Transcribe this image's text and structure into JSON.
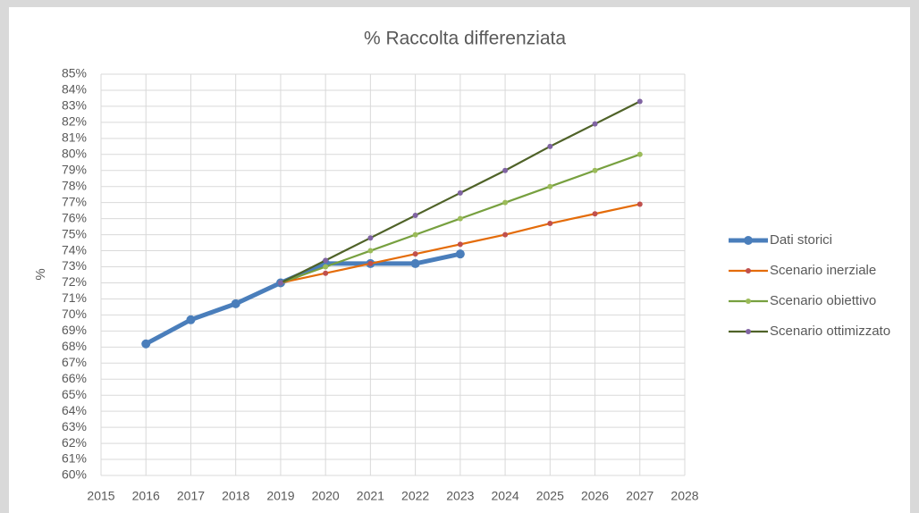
{
  "chart_data": {
    "type": "line",
    "title": "% Raccolta differenziata",
    "y_label": "%",
    "x": [
      2016,
      2017,
      2018,
      2019,
      2020,
      2021,
      2022,
      2023,
      2024,
      2025,
      2026,
      2027
    ],
    "series": [
      {
        "name": "Dati storici",
        "color": "#4a7ebb",
        "marker_color": "#4a7ebb",
        "values": [
          68.2,
          69.7,
          70.7,
          72.0,
          73.2,
          73.2,
          73.2,
          73.8,
          null,
          null,
          null,
          null
        ]
      },
      {
        "name": "Scenario inerziale",
        "color": "#e46c0a",
        "marker_color": "#c0504d",
        "values": [
          null,
          null,
          null,
          72.0,
          72.6,
          73.2,
          73.8,
          74.4,
          75.0,
          75.7,
          76.3,
          76.9
        ]
      },
      {
        "name": "Scenario obiettivo",
        "color": "#77a03f",
        "marker_color": "#9bbb59",
        "values": [
          null,
          null,
          null,
          72.0,
          73.0,
          74.0,
          75.0,
          76.0,
          77.0,
          78.0,
          79.0,
          80.0
        ]
      },
      {
        "name": "Scenario ottimizzato",
        "color": "#4f6228",
        "marker_color": "#8064a2",
        "values": [
          null,
          null,
          null,
          72.0,
          73.4,
          74.8,
          76.2,
          77.6,
          79.0,
          80.5,
          81.9,
          83.3
        ]
      }
    ],
    "xlim": [
      2015,
      2028
    ],
    "xticks": [
      2015,
      2016,
      2017,
      2018,
      2019,
      2020,
      2021,
      2022,
      2023,
      2024,
      2025,
      2026,
      2027,
      2028
    ],
    "ylim": [
      60,
      85
    ],
    "yticks": [
      {
        "value": 60,
        "label": "60%"
      },
      {
        "value": 61,
        "label": "61%"
      },
      {
        "value": 62,
        "label": "62%"
      },
      {
        "value": 63,
        "label": "63%"
      },
      {
        "value": 64,
        "label": "64%"
      },
      {
        "value": 65,
        "label": "65%"
      },
      {
        "value": 66,
        "label": "66%"
      },
      {
        "value": 67,
        "label": "67%"
      },
      {
        "value": 68,
        "label": "68%"
      },
      {
        "value": 69,
        "label": "69%"
      },
      {
        "value": 70,
        "label": "70%"
      },
      {
        "value": 71,
        "label": "71%"
      },
      {
        "value": 72,
        "label": "72%"
      },
      {
        "value": 73,
        "label": "73%"
      },
      {
        "value": 74,
        "label": "74%"
      },
      {
        "value": 75,
        "label": "75%"
      },
      {
        "value": 76,
        "label": "76%"
      },
      {
        "value": 77,
        "label": "77%"
      },
      {
        "value": 78,
        "label": "78%"
      },
      {
        "value": 79,
        "label": "79%"
      },
      {
        "value": 80,
        "label": "80%"
      },
      {
        "value": 81,
        "label": "81%"
      },
      {
        "value": 82,
        "label": "82%"
      },
      {
        "value": 83,
        "label": "83%"
      },
      {
        "value": 84,
        "label": "84%"
      },
      {
        "value": 85,
        "label": "85%"
      }
    ],
    "grid": true,
    "legend": "right"
  }
}
